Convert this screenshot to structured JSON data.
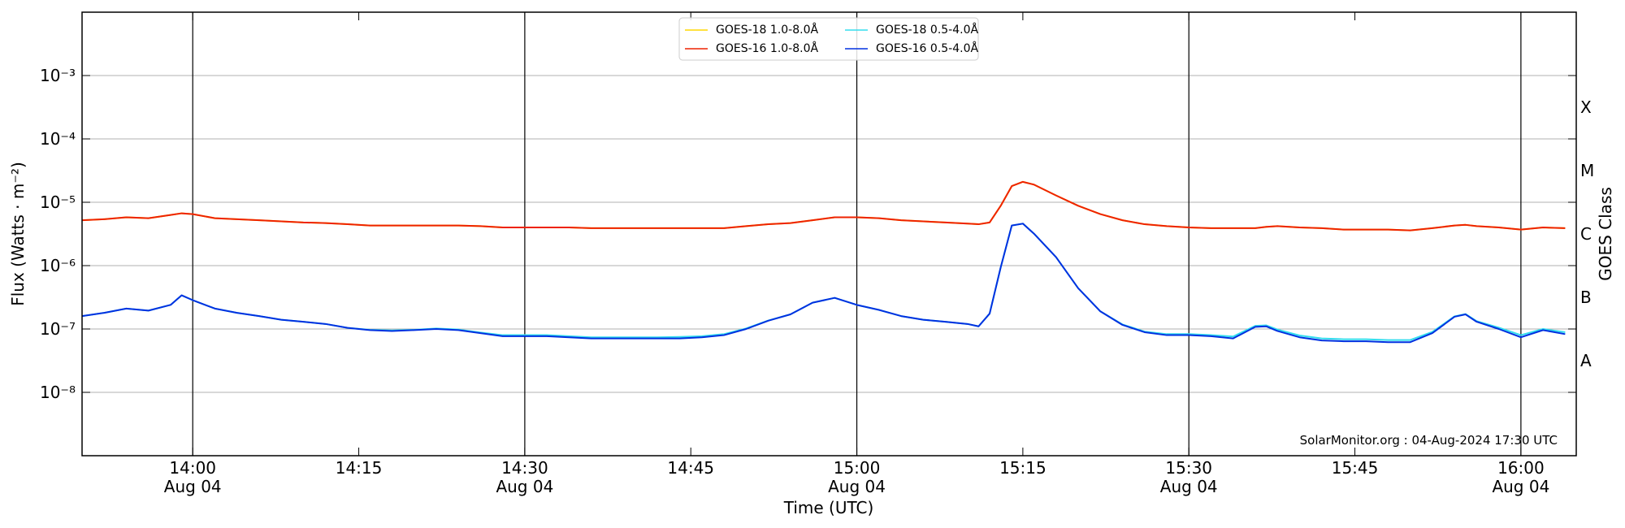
{
  "chart_data": {
    "type": "line",
    "x_label": "Time (UTC)",
    "y_label": "Flux (Watts · m⁻²)",
    "y2_label": "GOES Class",
    "annotation": "SolarMonitor.org : 04-Aug-2024 17:30 UTC",
    "log_y": true,
    "grid": true,
    "legend": "upper center",
    "xlim": [
      "13:50",
      "16:05"
    ],
    "xticks": [
      {
        "value": "14:00",
        "label": "14:00\nAug 04"
      },
      {
        "value": "14:15",
        "label": "14:15"
      },
      {
        "value": "14:30",
        "label": "14:30\nAug 04"
      },
      {
        "value": "14:45",
        "label": "14:45"
      },
      {
        "value": "15:00",
        "label": "15:00\nAug 04"
      },
      {
        "value": "15:15",
        "label": "15:15"
      },
      {
        "value": "15:30",
        "label": "15:30\nAug 04"
      },
      {
        "value": "15:45",
        "label": "15:45"
      },
      {
        "value": "16:00",
        "label": "16:00\nAug 04"
      }
    ],
    "vlines": [
      "14:00",
      "14:30",
      "15:00",
      "15:30",
      "16:00"
    ],
    "ylim": [
      1e-09,
      0.01
    ],
    "yticks": [
      {
        "value": 1e-08,
        "label": "10⁻⁸"
      },
      {
        "value": 1e-07,
        "label": "10⁻⁷"
      },
      {
        "value": 1e-06,
        "label": "10⁻⁶"
      },
      {
        "value": 1e-05,
        "label": "10⁻⁵"
      },
      {
        "value": 0.0001,
        "label": "10⁻⁴"
      },
      {
        "value": 0.001,
        "label": "10⁻³"
      }
    ],
    "y2lim": [
      1e-09,
      0.01
    ],
    "y2ticks": [
      {
        "value": 3.162e-08,
        "label": "A"
      },
      {
        "value": 3.162e-07,
        "label": "B"
      },
      {
        "value": 3.162e-06,
        "label": "C"
      },
      {
        "value": 3.162e-05,
        "label": "M"
      },
      {
        "value": 0.0003162,
        "label": "X"
      }
    ],
    "x": [
      "13:50",
      "13:52",
      "13:54",
      "13:56",
      "13:58",
      "13:59",
      "14:00",
      "14:02",
      "14:04",
      "14:06",
      "14:08",
      "14:10",
      "14:12",
      "14:14",
      "14:16",
      "14:18",
      "14:20",
      "14:22",
      "14:24",
      "14:26",
      "14:28",
      "14:30",
      "14:32",
      "14:34",
      "14:36",
      "14:38",
      "14:40",
      "14:42",
      "14:44",
      "14:46",
      "14:48",
      "14:50",
      "14:52",
      "14:54",
      "14:56",
      "14:58",
      "15:00",
      "15:02",
      "15:04",
      "15:06",
      "15:08",
      "15:10",
      "15:11",
      "15:12",
      "15:13",
      "15:14",
      "15:15",
      "15:16",
      "15:18",
      "15:20",
      "15:22",
      "15:24",
      "15:26",
      "15:28",
      "15:30",
      "15:32",
      "15:34",
      "15:36",
      "15:37",
      "15:38",
      "15:40",
      "15:42",
      "15:44",
      "15:46",
      "15:48",
      "15:50",
      "15:52",
      "15:54",
      "15:55",
      "15:56",
      "15:58",
      "16:00",
      "16:02",
      "16:04"
    ],
    "series": [
      {
        "name": "GOES-18 1.0-8.0Å",
        "color": "#ffd700",
        "values": [
          5.2e-06,
          5.4e-06,
          5.8e-06,
          5.6e-06,
          6.3e-06,
          6.7e-06,
          6.5e-06,
          5.6e-06,
          5.4e-06,
          5.2e-06,
          5e-06,
          4.8e-06,
          4.7e-06,
          4.5e-06,
          4.3e-06,
          4.3e-06,
          4.3e-06,
          4.3e-06,
          4.3e-06,
          4.2e-06,
          4e-06,
          4e-06,
          4e-06,
          4e-06,
          3.9e-06,
          3.9e-06,
          3.9e-06,
          3.9e-06,
          3.9e-06,
          3.9e-06,
          3.9e-06,
          4.2e-06,
          4.5e-06,
          4.7e-06,
          5.2e-06,
          5.8e-06,
          5.8e-06,
          5.6e-06,
          5.2e-06,
          5e-06,
          4.8e-06,
          4.6e-06,
          4.5e-06,
          4.8e-06,
          8.8e-06,
          1.8e-05,
          2.1e-05,
          1.9e-05,
          1.28e-05,
          8.8e-06,
          6.5e-06,
          5.2e-06,
          4.5e-06,
          4.2e-06,
          4e-06,
          3.9e-06,
          3.9e-06,
          3.9e-06,
          4.1e-06,
          4.2e-06,
          4e-06,
          3.9e-06,
          3.7e-06,
          3.7e-06,
          3.7e-06,
          3.6e-06,
          3.9e-06,
          4.3e-06,
          4.4e-06,
          4.2e-06,
          4e-06,
          3.7e-06,
          4e-06,
          3.9e-06
        ]
      },
      {
        "name": "GOES-16 1.0-8.0Å",
        "color": "#ee2200",
        "values": [
          5.2e-06,
          5.4e-06,
          5.8e-06,
          5.6e-06,
          6.3e-06,
          6.7e-06,
          6.5e-06,
          5.6e-06,
          5.4e-06,
          5.2e-06,
          5e-06,
          4.8e-06,
          4.7e-06,
          4.5e-06,
          4.3e-06,
          4.3e-06,
          4.3e-06,
          4.3e-06,
          4.3e-06,
          4.2e-06,
          4e-06,
          4e-06,
          4e-06,
          4e-06,
          3.9e-06,
          3.9e-06,
          3.9e-06,
          3.9e-06,
          3.9e-06,
          3.9e-06,
          3.9e-06,
          4.2e-06,
          4.5e-06,
          4.7e-06,
          5.2e-06,
          5.8e-06,
          5.8e-06,
          5.6e-06,
          5.2e-06,
          5e-06,
          4.8e-06,
          4.6e-06,
          4.5e-06,
          4.8e-06,
          8.8e-06,
          1.8e-05,
          2.1e-05,
          1.9e-05,
          1.28e-05,
          8.8e-06,
          6.5e-06,
          5.2e-06,
          4.5e-06,
          4.2e-06,
          4e-06,
          3.9e-06,
          3.9e-06,
          3.9e-06,
          4.1e-06,
          4.2e-06,
          4e-06,
          3.9e-06,
          3.7e-06,
          3.7e-06,
          3.7e-06,
          3.6e-06,
          3.9e-06,
          4.3e-06,
          4.4e-06,
          4.2e-06,
          4e-06,
          3.7e-06,
          4e-06,
          3.9e-06
        ]
      },
      {
        "name": "GOES-18 0.5-4.0Å",
        "color": "#33ddee",
        "values": [
          1.6e-07,
          1.8e-07,
          2.1e-07,
          1.95e-07,
          2.4e-07,
          3.4e-07,
          2.85e-07,
          2.1e-07,
          1.8e-07,
          1.6e-07,
          1.4e-07,
          1.3e-07,
          1.2e-07,
          1.04e-07,
          9.7e-08,
          9.5e-08,
          9.7e-08,
          1.02e-07,
          9.8e-08,
          8.8e-08,
          8e-08,
          8e-08,
          8e-08,
          7.7e-08,
          7.4e-08,
          7.4e-08,
          7.4e-08,
          7.4e-08,
          7.5e-08,
          7.7e-08,
          8.3e-08,
          1.02e-07,
          1.36e-07,
          1.7e-07,
          2.6e-07,
          3.1e-07,
          2.4e-07,
          2e-07,
          1.6e-07,
          1.4e-07,
          1.3e-07,
          1.2e-07,
          1.1e-07,
          1.75e-07,
          9.4e-07,
          4.3e-06,
          4.6e-06,
          3.2e-06,
          1.36e-06,
          4.4e-07,
          1.9e-07,
          1.18e-07,
          9.1e-08,
          8.3e-08,
          8.3e-08,
          8e-08,
          7.6e-08,
          1.12e-07,
          1.14e-07,
          9.8e-08,
          7.9e-08,
          7.1e-08,
          6.9e-08,
          6.9e-08,
          6.7e-08,
          6.7e-08,
          9e-08,
          1.58e-07,
          1.72e-07,
          1.33e-07,
          1.05e-07,
          8e-08,
          1e-07,
          8.9e-08
        ]
      },
      {
        "name": "GOES-16 0.5-4.0Å",
        "color": "#0030e0",
        "values": [
          1.6e-07,
          1.8e-07,
          2.1e-07,
          1.95e-07,
          2.4e-07,
          3.4e-07,
          2.85e-07,
          2.1e-07,
          1.8e-07,
          1.6e-07,
          1.4e-07,
          1.3e-07,
          1.2e-07,
          1.04e-07,
          9.6e-08,
          9.3e-08,
          9.6e-08,
          1e-07,
          9.6e-08,
          8.6e-08,
          7.7e-08,
          7.7e-08,
          7.7e-08,
          7.4e-08,
          7.1e-08,
          7.1e-08,
          7.1e-08,
          7.1e-08,
          7.1e-08,
          7.4e-08,
          8e-08,
          1e-07,
          1.35e-07,
          1.7e-07,
          2.6e-07,
          3.1e-07,
          2.4e-07,
          2e-07,
          1.6e-07,
          1.4e-07,
          1.3e-07,
          1.2e-07,
          1.1e-07,
          1.75e-07,
          9.4e-07,
          4.3e-06,
          4.6e-06,
          3.2e-06,
          1.36e-06,
          4.4e-07,
          1.9e-07,
          1.16e-07,
          8.9e-08,
          8e-08,
          8e-08,
          7.7e-08,
          7.1e-08,
          1.08e-07,
          1.1e-07,
          9.3e-08,
          7.4e-08,
          6.6e-08,
          6.4e-08,
          6.4e-08,
          6.2e-08,
          6.2e-08,
          8.6e-08,
          1.56e-07,
          1.7e-07,
          1.3e-07,
          1e-07,
          7.4e-08,
          9.6e-08,
          8.3e-08
        ]
      }
    ]
  }
}
